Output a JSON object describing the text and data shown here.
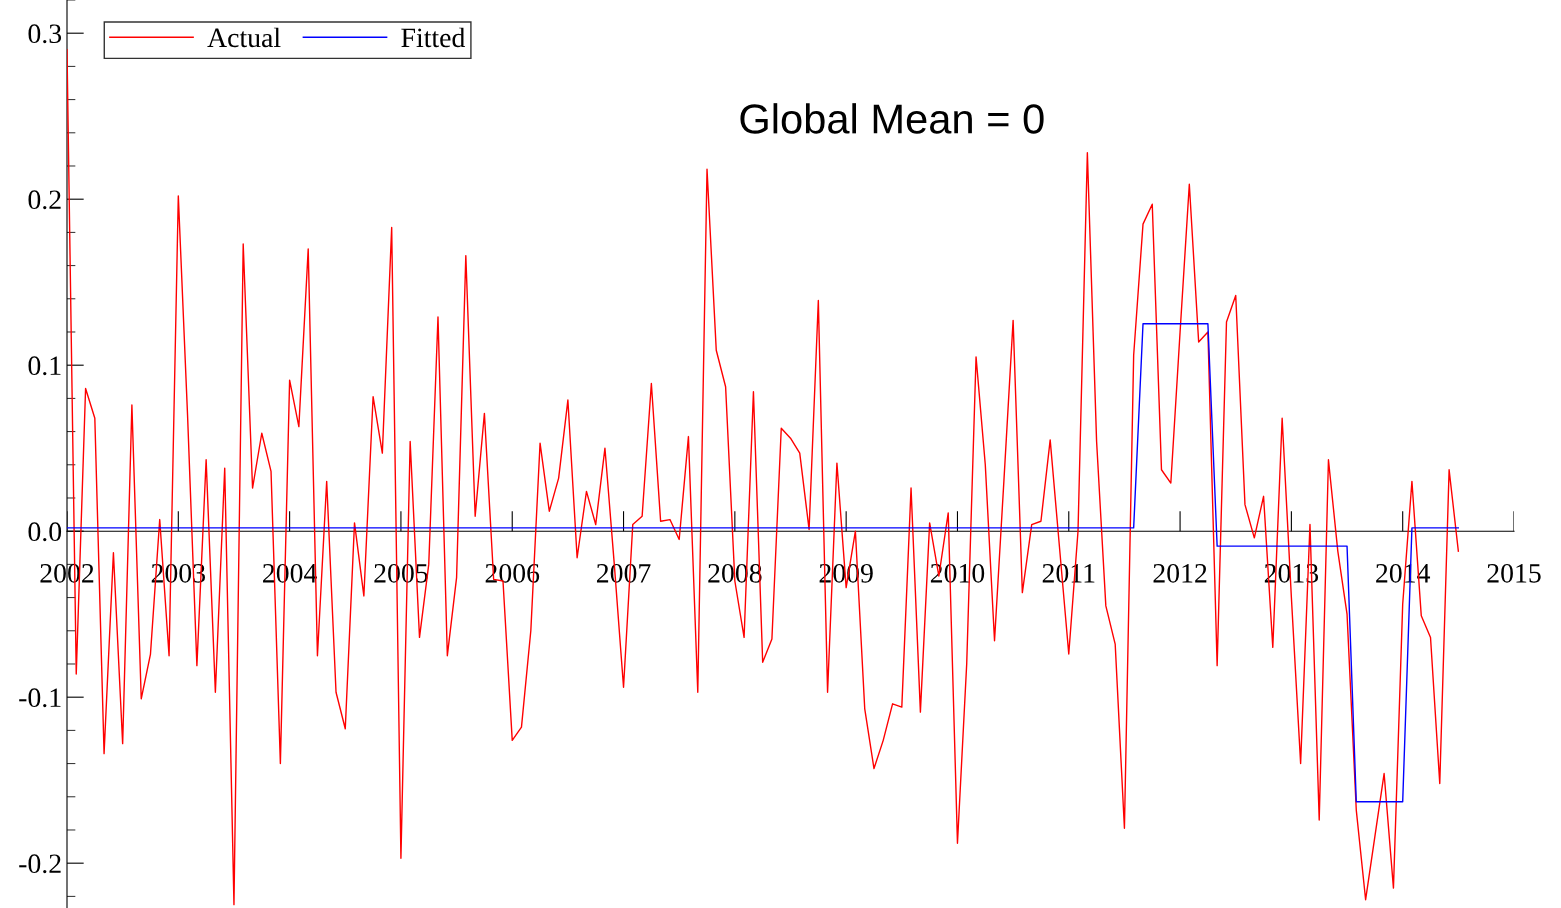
{
  "chart_data": {
    "type": "line",
    "annotations": [
      "Global Mean = 0"
    ],
    "x": [
      2002,
      2002.083,
      2002.167,
      2002.25,
      2002.333,
      2002.417,
      2002.5,
      2002.583,
      2002.667,
      2002.75,
      2002.833,
      2002.917,
      2003,
      2003.083,
      2003.167,
      2003.25,
      2003.333,
      2003.417,
      2003.5,
      2003.583,
      2003.667,
      2003.75,
      2003.833,
      2003.917,
      2004,
      2004.083,
      2004.167,
      2004.25,
      2004.333,
      2004.417,
      2004.5,
      2004.583,
      2004.667,
      2004.75,
      2004.833,
      2004.917,
      2005,
      2005.083,
      2005.167,
      2005.25,
      2005.333,
      2005.417,
      2005.5,
      2005.583,
      2005.667,
      2005.75,
      2005.833,
      2005.917,
      2006,
      2006.083,
      2006.167,
      2006.25,
      2006.333,
      2006.417,
      2006.5,
      2006.583,
      2006.667,
      2006.75,
      2006.833,
      2006.917,
      2007,
      2007.083,
      2007.167,
      2007.25,
      2007.333,
      2007.417,
      2007.5,
      2007.583,
      2007.667,
      2007.75,
      2007.833,
      2007.917,
      2008,
      2008.083,
      2008.167,
      2008.25,
      2008.333,
      2008.417,
      2008.5,
      2008.583,
      2008.667,
      2008.75,
      2008.833,
      2008.917,
      2009,
      2009.083,
      2009.167,
      2009.25,
      2009.333,
      2009.417,
      2009.5,
      2009.583,
      2009.667,
      2009.75,
      2009.833,
      2009.917,
      2010,
      2010.083,
      2010.167,
      2010.25,
      2010.333,
      2010.417,
      2010.5,
      2010.583,
      2010.667,
      2010.75,
      2010.833,
      2010.917,
      2011,
      2011.083,
      2011.167,
      2011.25,
      2011.333,
      2011.417,
      2011.5,
      2011.583,
      2011.667,
      2011.75,
      2011.833,
      2011.917,
      2012,
      2012.083,
      2012.167,
      2012.25,
      2012.333,
      2012.417,
      2012.5,
      2012.583,
      2012.667,
      2012.75,
      2012.833,
      2012.917,
      2013,
      2013.083,
      2013.167,
      2013.25,
      2013.333,
      2013.417,
      2013.5,
      2013.583,
      2013.667,
      2013.75,
      2013.833,
      2013.917,
      2014,
      2014.083,
      2014.167,
      2014.25,
      2014.333,
      2014.417,
      2014.5
    ],
    "series": [
      {
        "name": "Actual",
        "color": "#ff0000",
        "values": [
          0.29,
          -0.086,
          0.086,
          0.068,
          -0.134,
          -0.013,
          -0.128,
          0.076,
          -0.101,
          -0.074,
          0.007,
          -0.075,
          0.202,
          0.07,
          -0.081,
          0.043,
          -0.097,
          0.038,
          -0.225,
          0.173,
          0.026,
          0.059,
          0.036,
          -0.14,
          0.091,
          0.063,
          0.17,
          -0.075,
          0.03,
          -0.097,
          -0.119,
          0.005,
          -0.039,
          0.081,
          0.047,
          0.183,
          -0.197,
          0.054,
          -0.064,
          -0.02,
          0.129,
          -0.075,
          -0.028,
          0.166,
          0.009,
          0.071,
          -0.029,
          -0.03,
          -0.126,
          -0.118,
          -0.06,
          0.053,
          0.012,
          0.032,
          0.079,
          -0.016,
          0.024,
          0.004,
          0.05,
          -0.02,
          -0.094,
          0.004,
          0.009,
          0.089,
          0.006,
          0.007,
          -0.005,
          0.057,
          -0.097,
          0.218,
          0.109,
          0.087,
          -0.03,
          -0.064,
          0.084,
          -0.079,
          -0.065,
          0.062,
          0.056,
          0.047,
          0.001,
          0.139,
          -0.097,
          0.041,
          -0.034,
          0.0,
          -0.107,
          -0.143,
          -0.126,
          -0.104,
          -0.106,
          0.026,
          -0.109,
          0.005,
          -0.027,
          0.011,
          -0.188,
          -0.08,
          0.105,
          0.04,
          -0.066,
          0.03,
          0.127,
          -0.037,
          0.004,
          0.006,
          0.055,
          -0.01,
          -0.074,
          0.0,
          0.228,
          0.054,
          -0.045,
          -0.068,
          -0.179,
          0.106,
          0.185,
          0.197,
          0.037,
          0.029,
          0.12,
          0.209,
          0.114,
          0.12,
          -0.081,
          0.126,
          0.142,
          0.016,
          -0.004,
          0.021,
          -0.07,
          0.068,
          -0.04,
          -0.14,
          0.004,
          -0.174,
          0.043,
          -0.012,
          -0.05,
          -0.168,
          -0.222,
          -0.184,
          -0.146,
          -0.215,
          -0.044,
          0.03,
          -0.051,
          -0.064,
          -0.152,
          0.037,
          -0.012
        ]
      },
      {
        "name": "Fitted",
        "color": "#0000ff",
        "values": [
          0.002,
          0.002,
          0.002,
          0.002,
          0.002,
          0.002,
          0.002,
          0.002,
          0.002,
          0.002,
          0.002,
          0.002,
          0.002,
          0.002,
          0.002,
          0.002,
          0.002,
          0.002,
          0.002,
          0.002,
          0.002,
          0.002,
          0.002,
          0.002,
          0.002,
          0.002,
          0.002,
          0.002,
          0.002,
          0.002,
          0.002,
          0.002,
          0.002,
          0.002,
          0.002,
          0.002,
          0.002,
          0.002,
          0.002,
          0.002,
          0.002,
          0.002,
          0.002,
          0.002,
          0.002,
          0.002,
          0.002,
          0.002,
          0.002,
          0.002,
          0.002,
          0.002,
          0.002,
          0.002,
          0.002,
          0.002,
          0.002,
          0.002,
          0.002,
          0.002,
          0.002,
          0.002,
          0.002,
          0.002,
          0.002,
          0.002,
          0.002,
          0.002,
          0.002,
          0.002,
          0.002,
          0.002,
          0.002,
          0.002,
          0.002,
          0.002,
          0.002,
          0.002,
          0.002,
          0.002,
          0.002,
          0.002,
          0.002,
          0.002,
          0.002,
          0.002,
          0.002,
          0.002,
          0.002,
          0.002,
          0.002,
          0.002,
          0.002,
          0.002,
          0.002,
          0.002,
          0.002,
          0.002,
          0.002,
          0.002,
          0.002,
          0.002,
          0.002,
          0.002,
          0.002,
          0.002,
          0.002,
          0.002,
          0.002,
          0.002,
          0.002,
          0.002,
          0.002,
          0.002,
          0.002,
          0.002,
          0.125,
          0.125,
          0.125,
          0.125,
          0.125,
          0.125,
          0.125,
          0.125,
          -0.009,
          -0.009,
          -0.009,
          -0.009,
          -0.009,
          -0.009,
          -0.009,
          -0.009,
          -0.009,
          -0.009,
          -0.009,
          -0.009,
          -0.009,
          -0.009,
          -0.009,
          -0.163,
          -0.163,
          -0.163,
          -0.163,
          -0.163,
          -0.163,
          0.002,
          0.002,
          0.002,
          0.002,
          0.002,
          0.002
        ]
      }
    ],
    "xlim": [
      2002,
      2015
    ],
    "xticks": [
      2002,
      2003,
      2004,
      2005,
      2006,
      2007,
      2008,
      2009,
      2010,
      2011,
      2012,
      2013,
      2014,
      2015
    ],
    "ylim": [
      -0.227,
      0.32
    ],
    "yticks": [
      {
        "value": -0.2,
        "label": "-0.2"
      },
      {
        "value": -0.1,
        "label": "-0.1"
      },
      {
        "value": 0,
        "label": "0.0"
      },
      0.1,
      0.2,
      0.3
    ],
    "grid": false,
    "legend": "top left",
    "marker": "none",
    "line_style": "solid"
  }
}
